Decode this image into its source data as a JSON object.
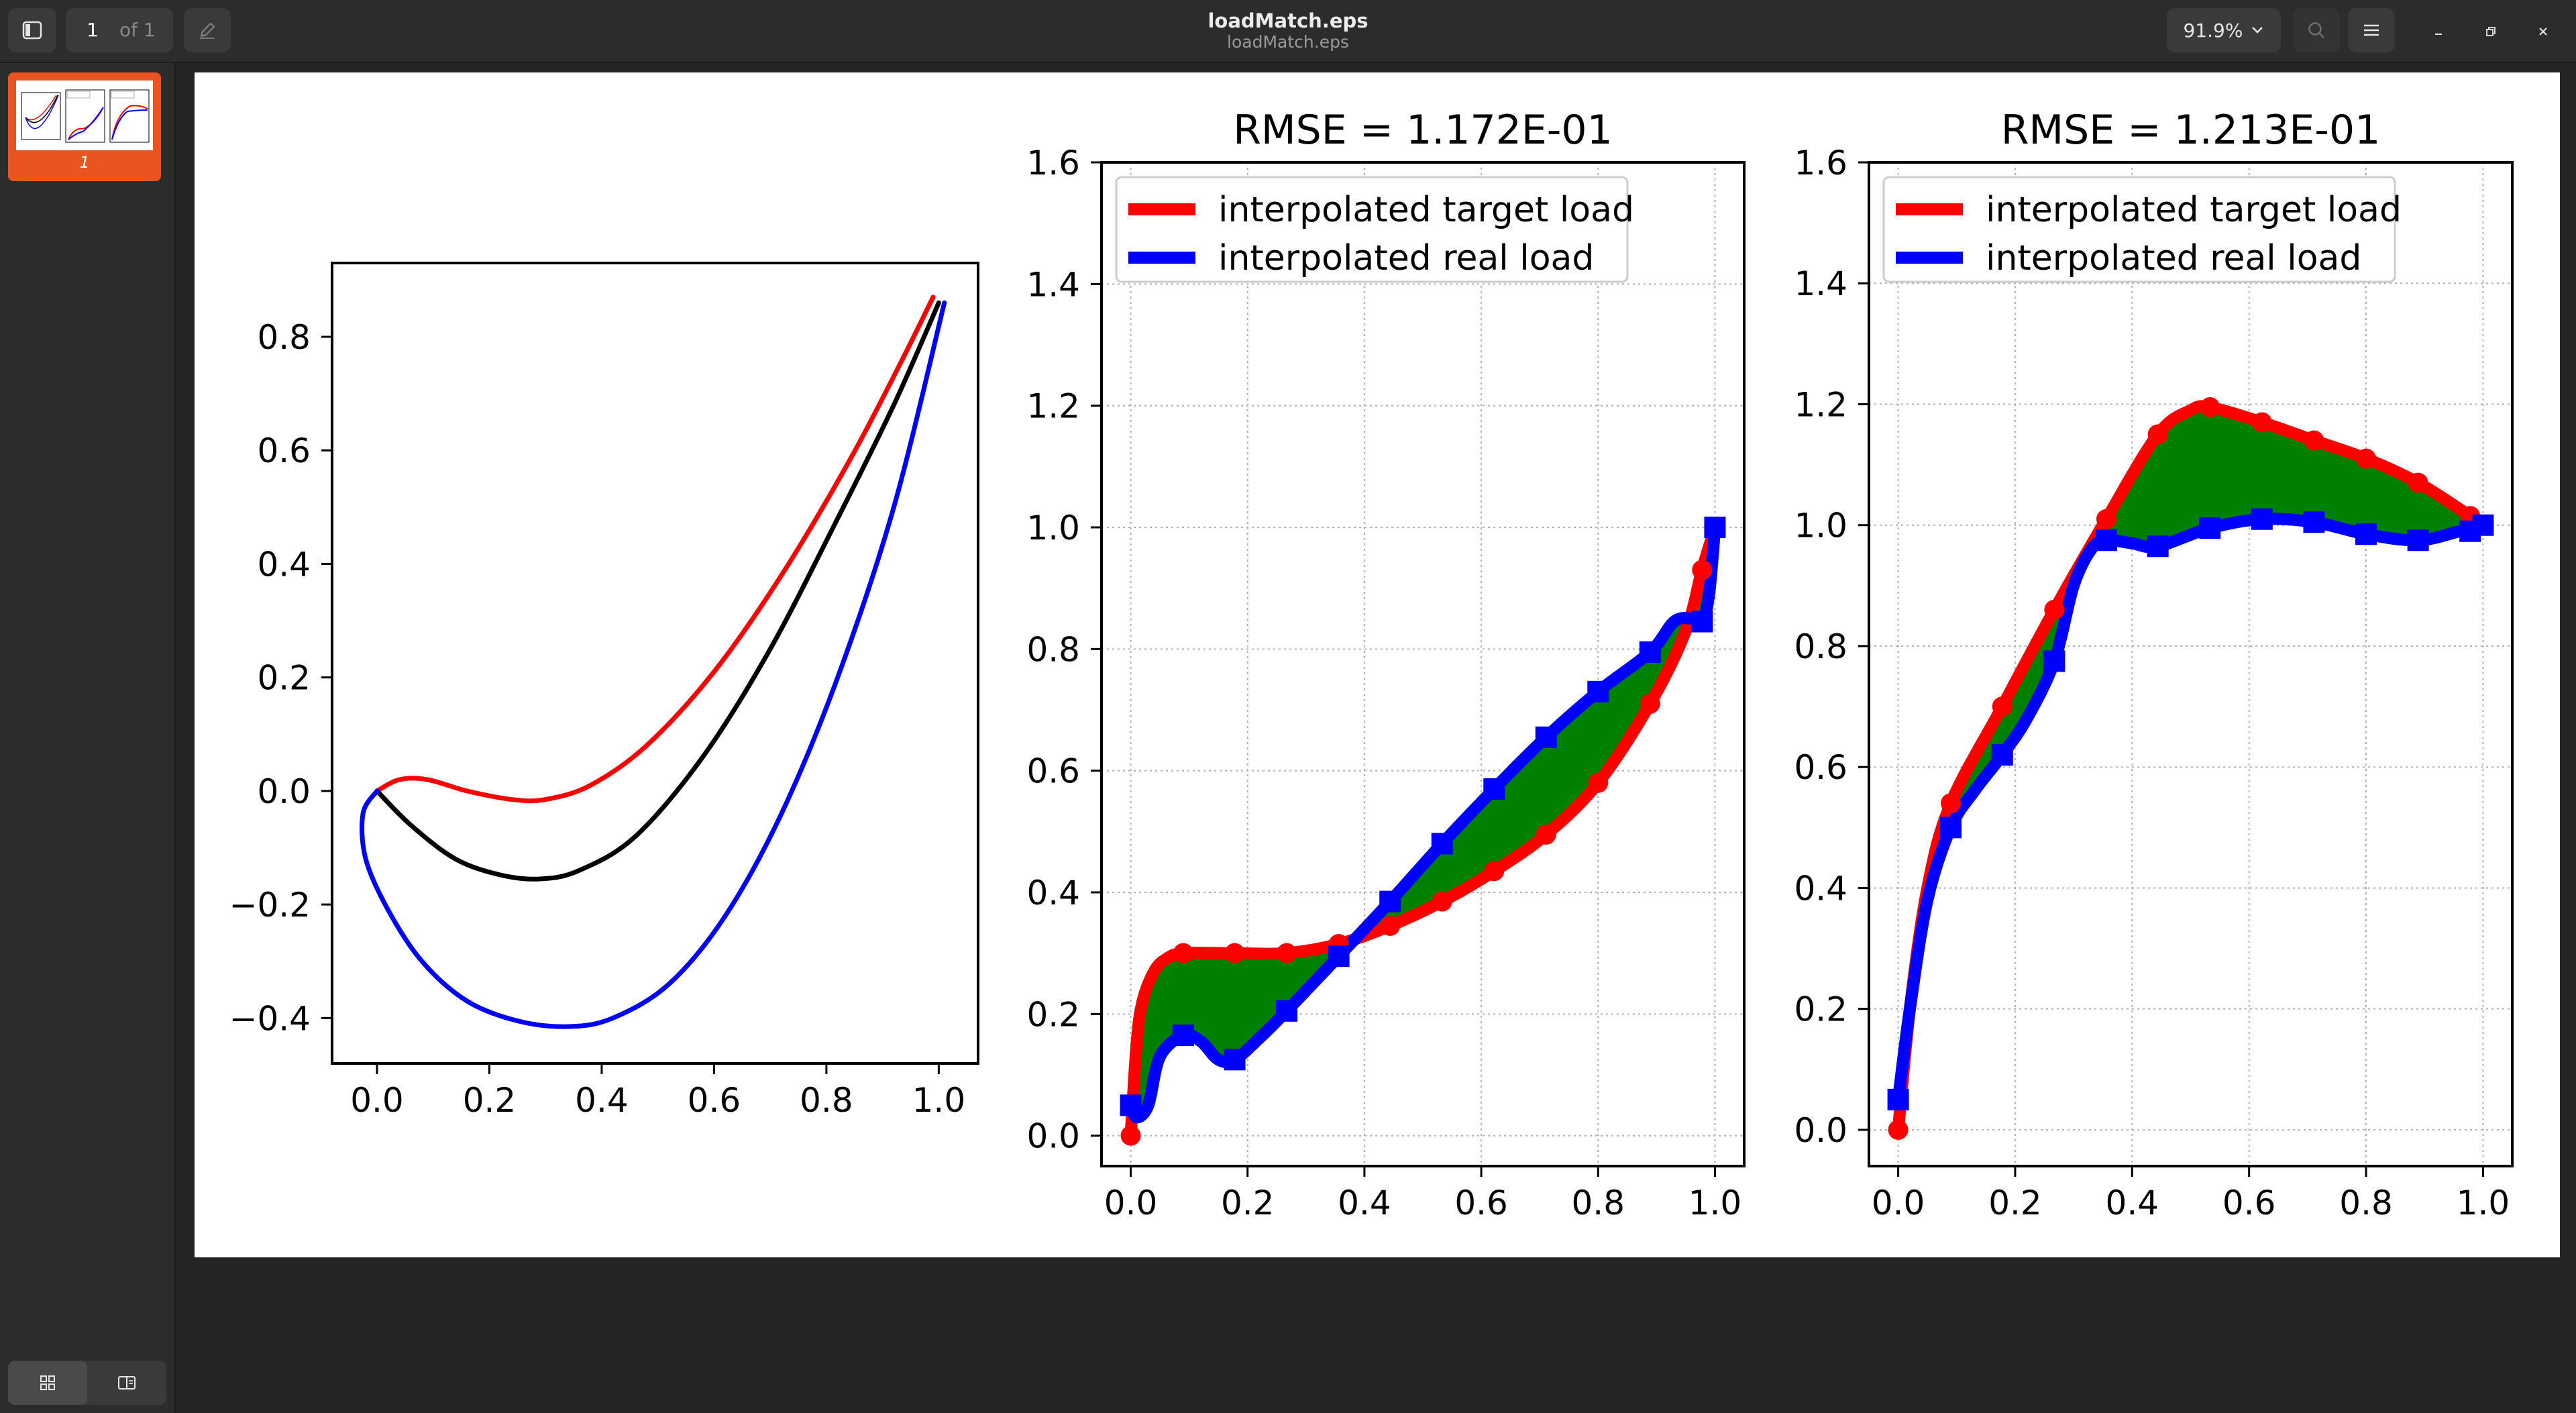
{
  "window": {
    "title": "loadMatch.eps",
    "subtitle": "loadMatch.eps"
  },
  "toolbar": {
    "page_current": "1",
    "page_of": "of 1",
    "zoom": "91.9%"
  },
  "sidebar": {
    "thumbnail_label": "1"
  },
  "icons": {
    "sidebar_toggle": "sidebar-icon",
    "annotate": "pencil-icon",
    "search": "search-icon",
    "menu": "hamburger-icon",
    "minimize": "minimize-icon",
    "restore": "restore-icon",
    "close": "close-icon",
    "thumbnails": "grid-icon",
    "outline": "book-icon"
  },
  "colors": {
    "target": "#ff0000",
    "real": "#0000ff",
    "mean": "#000000",
    "fill": "#008000",
    "accent": "#e95420"
  },
  "chart_data": [
    {
      "type": "line",
      "title": "",
      "xlabel": "",
      "ylabel": "",
      "xlim": [
        -0.08,
        1.07
      ],
      "ylim": [
        -0.48,
        0.93
      ],
      "xticks": [
        "0.0",
        "0.2",
        "0.4",
        "0.6",
        "0.8",
        "1.0"
      ],
      "yticks": [
        "−0.4",
        "−0.2",
        "0.0",
        "0.2",
        "0.4",
        "0.6",
        "0.8"
      ],
      "grid": false,
      "series": [
        {
          "color": "#ff0000",
          "x": [
            0.0,
            0.04,
            0.09,
            0.16,
            0.24,
            0.3,
            0.38,
            0.48,
            0.6,
            0.72,
            0.84,
            0.93,
            0.99
          ],
          "y": [
            0.0,
            0.02,
            0.02,
            0.0,
            -0.015,
            -0.015,
            0.01,
            0.08,
            0.21,
            0.38,
            0.58,
            0.75,
            0.87
          ]
        },
        {
          "color": "#000000",
          "x": [
            0.0,
            0.06,
            0.14,
            0.22,
            0.29,
            0.36,
            0.46,
            0.58,
            0.7,
            0.82,
            0.92,
            1.0
          ],
          "y": [
            0.0,
            -0.06,
            -0.12,
            -0.148,
            -0.155,
            -0.14,
            -0.08,
            0.06,
            0.25,
            0.48,
            0.68,
            0.86
          ]
        },
        {
          "color": "#0000ff",
          "x": [
            0.0,
            -0.025,
            -0.02,
            0.02,
            0.08,
            0.16,
            0.25,
            0.34,
            0.42,
            0.52,
            0.62,
            0.72,
            0.82,
            0.92,
            1.01
          ],
          "y": [
            0.0,
            -0.04,
            -0.12,
            -0.21,
            -0.3,
            -0.37,
            -0.405,
            -0.415,
            -0.4,
            -0.34,
            -0.22,
            -0.04,
            0.2,
            0.5,
            0.86
          ]
        }
      ]
    },
    {
      "type": "line",
      "title": "RMSE = 1.172E-01",
      "xlabel": "",
      "ylabel": "",
      "xlim": [
        -0.05,
        1.05
      ],
      "ylim": [
        -0.05,
        1.6
      ],
      "xticks": [
        "0.0",
        "0.2",
        "0.4",
        "0.6",
        "0.8",
        "1.0"
      ],
      "yticks": [
        "0.0",
        "0.2",
        "0.4",
        "0.6",
        "0.8",
        "1.0",
        "1.2",
        "1.4",
        "1.6"
      ],
      "grid": true,
      "legend_position": "upper-left",
      "fill_between": true,
      "series": [
        {
          "name": "interpolated target load",
          "color": "#ff0000",
          "marker": "circle",
          "x": [
            0.0,
            0.01,
            0.02,
            0.04,
            0.06,
            0.09,
            0.178,
            0.267,
            0.356,
            0.444,
            0.533,
            0.622,
            0.711,
            0.8,
            0.889,
            0.95,
            0.978,
            1.0
          ],
          "y": [
            0.0,
            0.15,
            0.22,
            0.27,
            0.29,
            0.3,
            0.3,
            0.3,
            0.315,
            0.345,
            0.385,
            0.435,
            0.495,
            0.58,
            0.71,
            0.83,
            0.93,
            1.0
          ],
          "markers_x": [
            0.0,
            0.09,
            0.178,
            0.267,
            0.356,
            0.444,
            0.533,
            0.622,
            0.711,
            0.8,
            0.889,
            0.978,
            1.0
          ],
          "markers_y": [
            0.0,
            0.3,
            0.3,
            0.3,
            0.315,
            0.345,
            0.385,
            0.435,
            0.495,
            0.58,
            0.71,
            0.93,
            1.0
          ]
        },
        {
          "name": "interpolated real load",
          "color": "#0000ff",
          "marker": "square",
          "x": [
            0.0,
            0.01,
            0.03,
            0.05,
            0.09,
            0.12,
            0.15,
            0.178,
            0.22,
            0.267,
            0.356,
            0.444,
            0.533,
            0.622,
            0.711,
            0.8,
            0.889,
            0.93,
            0.96,
            0.978,
            0.99,
            1.0
          ],
          "y": [
            0.05,
            0.03,
            0.05,
            0.13,
            0.165,
            0.155,
            0.125,
            0.125,
            0.16,
            0.205,
            0.295,
            0.385,
            0.48,
            0.57,
            0.655,
            0.73,
            0.795,
            0.845,
            0.85,
            0.845,
            0.89,
            1.0
          ],
          "markers_x": [
            0.0,
            0.09,
            0.178,
            0.267,
            0.356,
            0.444,
            0.533,
            0.622,
            0.711,
            0.8,
            0.889,
            0.978,
            1.0
          ],
          "markers_y": [
            0.05,
            0.165,
            0.125,
            0.205,
            0.295,
            0.385,
            0.48,
            0.57,
            0.655,
            0.73,
            0.795,
            0.845,
            1.0
          ]
        }
      ]
    },
    {
      "type": "line",
      "title": "RMSE = 1.213E-01",
      "xlabel": "",
      "ylabel": "",
      "xlim": [
        -0.05,
        1.05
      ],
      "ylim": [
        -0.06,
        1.6
      ],
      "xticks": [
        "0.0",
        "0.2",
        "0.4",
        "0.6",
        "0.8",
        "1.0"
      ],
      "yticks": [
        "0.0",
        "0.2",
        "0.4",
        "0.6",
        "0.8",
        "1.0",
        "1.2",
        "1.4",
        "1.6"
      ],
      "grid": true,
      "legend_position": "upper-left",
      "fill_between": true,
      "series": [
        {
          "name": "interpolated target load",
          "color": "#ff0000",
          "marker": "circle",
          "x": [
            0.0,
            0.02,
            0.05,
            0.09,
            0.178,
            0.267,
            0.356,
            0.444,
            0.5,
            0.533,
            0.622,
            0.711,
            0.8,
            0.889,
            0.978,
            1.0
          ],
          "y": [
            0.0,
            0.2,
            0.4,
            0.54,
            0.7,
            0.86,
            1.01,
            1.15,
            1.19,
            1.195,
            1.17,
            1.14,
            1.11,
            1.07,
            1.015,
            1.0
          ],
          "markers_x": [
            0.0,
            0.09,
            0.178,
            0.267,
            0.356,
            0.444,
            0.533,
            0.622,
            0.711,
            0.8,
            0.889,
            0.978,
            1.0
          ],
          "markers_y": [
            0.0,
            0.54,
            0.7,
            0.86,
            1.01,
            1.15,
            1.195,
            1.17,
            1.14,
            1.11,
            1.07,
            1.015,
            1.0
          ]
        },
        {
          "name": "interpolated real load",
          "color": "#0000ff",
          "marker": "square",
          "x": [
            0.0,
            0.02,
            0.05,
            0.09,
            0.13,
            0.178,
            0.22,
            0.267,
            0.3,
            0.33,
            0.356,
            0.4,
            0.444,
            0.533,
            0.622,
            0.711,
            0.8,
            0.889,
            0.96,
            1.0
          ],
          "y": [
            0.05,
            0.2,
            0.38,
            0.5,
            0.56,
            0.62,
            0.68,
            0.775,
            0.9,
            0.96,
            0.975,
            0.97,
            0.965,
            0.995,
            1.01,
            1.005,
            0.985,
            0.975,
            0.99,
            1.0
          ],
          "markers_x": [
            0.0,
            0.09,
            0.178,
            0.267,
            0.356,
            0.444,
            0.533,
            0.622,
            0.711,
            0.8,
            0.889,
            0.978,
            1.0
          ],
          "markers_y": [
            0.05,
            0.5,
            0.62,
            0.775,
            0.975,
            0.965,
            0.995,
            1.01,
            1.005,
            0.985,
            0.975,
            0.99,
            1.0
          ]
        }
      ]
    }
  ]
}
